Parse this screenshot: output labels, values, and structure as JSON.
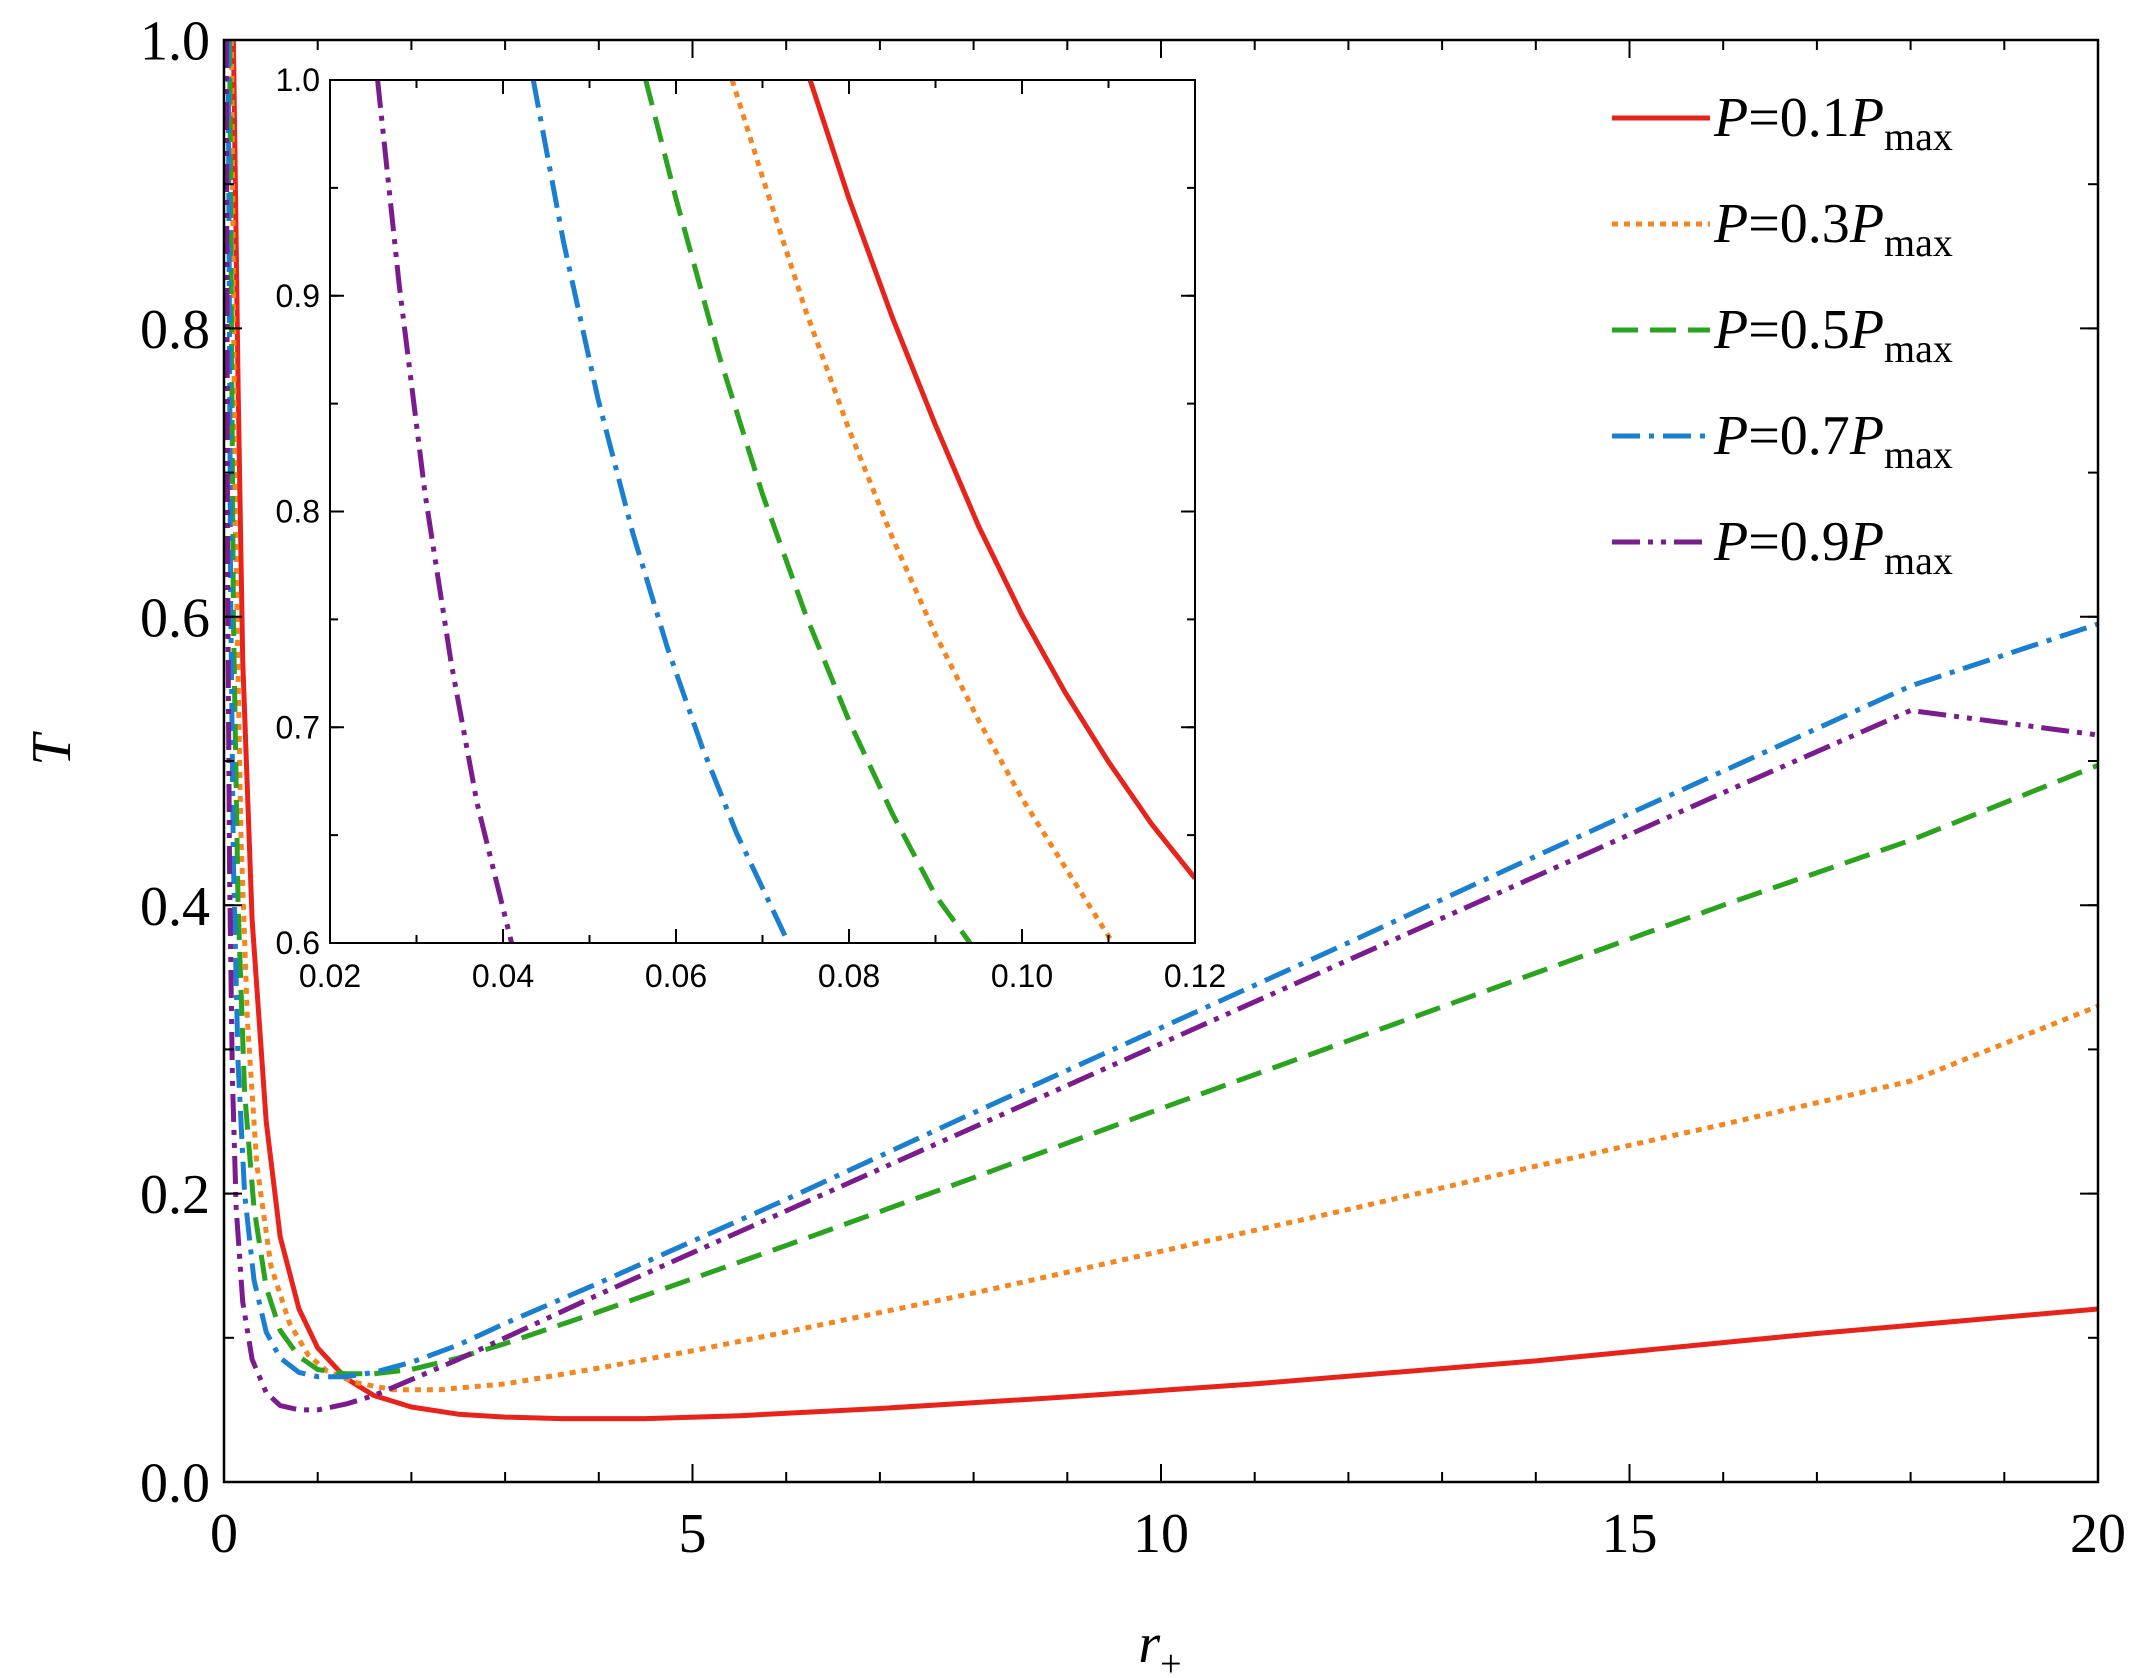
{
  "chart_data": [
    {
      "type": "line",
      "role": "main",
      "xlabel": "r",
      "xlabel_sub": "+",
      "ylabel": "T",
      "xlim": [
        0,
        20
      ],
      "ylim": [
        0,
        1.0
      ],
      "xticks": [
        "0",
        "5",
        "10",
        "15",
        "20"
      ],
      "yticks": [
        "0.0",
        "0.2",
        "0.4",
        "0.6",
        "0.8",
        "1.0"
      ],
      "legend_position": "top-right",
      "series": [
        {
          "legend": {
            "prefix": "P",
            "eq": "=0.1",
            "var": "P",
            "sub": "max"
          },
          "color": "#e8231b",
          "dash": "solid",
          "x": [
            0.1,
            0.15,
            0.2,
            0.3,
            0.45,
            0.6,
            0.8,
            1.0,
            1.3,
            1.6,
            2.0,
            2.5,
            3.0,
            3.6,
            4.5,
            5.5,
            7,
            9,
            11,
            14,
            17,
            20
          ],
          "y": [
            1.0,
            0.76,
            0.57,
            0.39,
            0.25,
            0.17,
            0.12,
            0.093,
            0.072,
            0.06,
            0.052,
            0.047,
            0.045,
            0.044,
            0.044,
            0.046,
            0.051,
            0.059,
            0.068,
            0.084,
            0.103,
            0.12
          ]
        },
        {
          "legend": {
            "prefix": "P",
            "eq": "=0.3",
            "var": "P",
            "sub": "max"
          },
          "color": "#f5851f",
          "dash": "dotted",
          "x": [
            0.08,
            0.12,
            0.18,
            0.25,
            0.35,
            0.5,
            0.7,
            0.9,
            1.1,
            1.4,
            1.8,
            2.3,
            3.0,
            4,
            5,
            6,
            8,
            10,
            12,
            14,
            16,
            18,
            20
          ],
          "y": [
            1.0,
            0.67,
            0.45,
            0.32,
            0.22,
            0.15,
            0.11,
            0.088,
            0.077,
            0.069,
            0.064,
            0.064,
            0.068,
            0.079,
            0.091,
            0.104,
            0.131,
            0.16,
            0.189,
            0.219,
            0.248,
            0.278,
            0.33
          ]
        },
        {
          "legend": {
            "prefix": "P",
            "eq": "=0.5",
            "var": "P",
            "sub": "max"
          },
          "color": "#2aa31f",
          "dash": "dashed",
          "x": [
            0.06,
            0.1,
            0.15,
            0.22,
            0.32,
            0.45,
            0.6,
            0.8,
            1.0,
            1.3,
            1.6,
            2.0,
            2.5,
            3.0,
            4,
            5,
            6,
            8,
            10,
            12,
            14,
            16,
            18,
            20
          ],
          "y": [
            1.0,
            0.6,
            0.4,
            0.27,
            0.19,
            0.135,
            0.105,
            0.087,
            0.078,
            0.075,
            0.075,
            0.078,
            0.086,
            0.096,
            0.118,
            0.141,
            0.164,
            0.211,
            0.259,
            0.306,
            0.353,
            0.4,
            0.445,
            0.497
          ]
        },
        {
          "legend": {
            "prefix": "P",
            "eq": "=0.7",
            "var": "P",
            "sub": "max"
          },
          "color": "#1a7fd0",
          "dash": "dashdot",
          "x": [
            0.045,
            0.07,
            0.1,
            0.15,
            0.22,
            0.32,
            0.45,
            0.6,
            0.8,
            1.0,
            1.3,
            1.6,
            2.0,
            2.5,
            3.0,
            4,
            5,
            6,
            8,
            10,
            12,
            14,
            16,
            18,
            20
          ],
          "y": [
            1.0,
            0.62,
            0.43,
            0.29,
            0.2,
            0.14,
            0.104,
            0.086,
            0.076,
            0.073,
            0.073,
            0.076,
            0.083,
            0.095,
            0.11,
            0.138,
            0.167,
            0.196,
            0.256,
            0.315,
            0.374,
            0.434,
            0.493,
            0.552,
            0.595
          ]
        },
        {
          "legend": {
            "prefix": "P",
            "eq": "=0.9",
            "var": "P",
            "sub": "max"
          },
          "color": "#7a1c8e",
          "dash": "dashdotdot",
          "x": [
            0.025,
            0.04,
            0.06,
            0.09,
            0.13,
            0.2,
            0.3,
            0.45,
            0.6,
            0.8,
            1.0,
            1.3,
            1.6,
            2.0,
            2.5,
            3.0,
            4,
            5,
            6,
            8,
            10,
            12,
            14,
            16,
            18,
            20
          ],
          "y": [
            1.0,
            0.62,
            0.42,
            0.28,
            0.19,
            0.125,
            0.085,
            0.062,
            0.053,
            0.05,
            0.05,
            0.054,
            0.06,
            0.071,
            0.085,
            0.1,
            0.13,
            0.159,
            0.188,
            0.246,
            0.304,
            0.362,
            0.42,
            0.478,
            0.535,
            0.518
          ]
        }
      ]
    },
    {
      "type": "line",
      "role": "inset",
      "xlim": [
        0.02,
        0.12
      ],
      "ylim": [
        0.6,
        1.0
      ],
      "xticks": [
        "0.02",
        "0.04",
        "0.06",
        "0.08",
        "0.10",
        "0.12"
      ],
      "yticks": [
        "0.6",
        "0.7",
        "0.8",
        "0.9",
        "1.0"
      ],
      "series": [
        {
          "color": "#e8231b",
          "dash": "solid",
          "x": [
            0.0755,
            0.08,
            0.085,
            0.09,
            0.095,
            0.1,
            0.105,
            0.11,
            0.115,
            0.12
          ],
          "y": [
            1.0,
            0.945,
            0.89,
            0.84,
            0.793,
            0.752,
            0.716,
            0.684,
            0.655,
            0.63
          ]
        },
        {
          "color": "#f5851f",
          "dash": "dotted",
          "x": [
            0.0665,
            0.07,
            0.075,
            0.08,
            0.085,
            0.09,
            0.095,
            0.1,
            0.105,
            0.1105
          ],
          "y": [
            1.0,
            0.955,
            0.893,
            0.838,
            0.788,
            0.743,
            0.703,
            0.667,
            0.635,
            0.6
          ]
        },
        {
          "color": "#2aa31f",
          "dash": "dashed",
          "x": [
            0.0565,
            0.06,
            0.065,
            0.07,
            0.075,
            0.08,
            0.085,
            0.09,
            0.094
          ],
          "y": [
            1.0,
            0.945,
            0.872,
            0.808,
            0.752,
            0.703,
            0.66,
            0.622,
            0.6
          ]
        },
        {
          "color": "#1a7fd0",
          "dash": "dashdot",
          "x": [
            0.0435,
            0.047,
            0.051,
            0.055,
            0.059,
            0.063,
            0.067,
            0.071,
            0.073
          ],
          "y": [
            1.0,
            0.925,
            0.852,
            0.79,
            0.737,
            0.691,
            0.651,
            0.617,
            0.6
          ]
        },
        {
          "color": "#7a1c8e",
          "dash": "dashdotdot",
          "x": [
            0.0255,
            0.028,
            0.031,
            0.034,
            0.037,
            0.041
          ],
          "y": [
            1.0,
            0.905,
            0.808,
            0.73,
            0.665,
            0.6
          ]
        }
      ]
    }
  ]
}
